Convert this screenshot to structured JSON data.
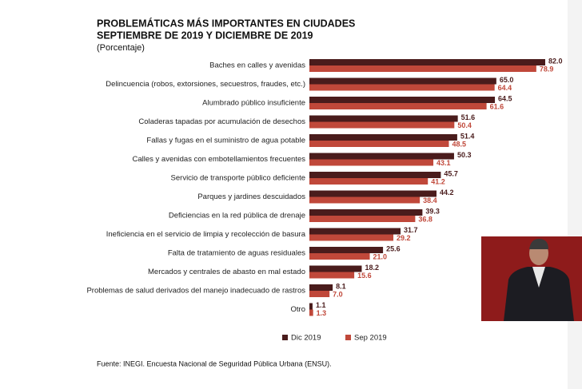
{
  "chart_data": {
    "type": "hbar",
    "title": "PROBLEMÁTICAS MÁS IMPORTANTES EN CIUDADES",
    "subtitle": "SEPTIEMBRE DE 2019 Y DICIEMBRE DE 2019",
    "unit_note": "(Porcentaje)",
    "source": "Fuente: INEGI. Encuesta Nacional de Seguridad Pública Urbana (ENSU).",
    "categories": [
      "Baches en calles y avenidas",
      "Delincuencia (robos, extorsiones, secuestros, fraudes, etc.)",
      "Alumbrado público insuficiente",
      "Coladeras tapadas por acumulación de desechos",
      "Fallas y fugas en el suministro de agua potable",
      "Calles y avenidas con embotellamientos frecuentes",
      "Servicio de transporte público deficiente",
      "Parques y jardines descuidados",
      "Deficiencias en la red pública de drenaje",
      "Ineficiencia en el servicio de limpia y recolección de basura",
      "Falta de tratamiento de aguas residuales",
      "Mercados y centrales de abasto en mal estado",
      "Problemas de salud derivados del manejo inadecuado de rastros",
      "Otro"
    ],
    "series": [
      {
        "name": "Dic 2019",
        "color": "#4a1c1c",
        "values": [
          82.0,
          65.0,
          64.5,
          51.6,
          51.4,
          50.3,
          45.7,
          44.2,
          39.3,
          31.7,
          25.6,
          18.2,
          8.1,
          1.1
        ],
        "value_labels": [
          "82.0",
          "65.0",
          "64.5",
          "51.6",
          "51.4",
          "50.3",
          "45.7",
          "44.2",
          "39.3",
          "31.7",
          "25.6",
          "18.2",
          "8.1",
          "1.1"
        ]
      },
      {
        "name": "Sep 2019",
        "color": "#c0483a",
        "values": [
          78.9,
          64.4,
          61.6,
          50.4,
          48.5,
          43.1,
          41.2,
          38.4,
          36.8,
          29.2,
          21.0,
          15.6,
          7.0,
          1.3
        ],
        "value_labels": [
          "78.9",
          "64.4",
          "61.6",
          "50.4",
          "48.5",
          "43.1",
          "41.2",
          "38.4",
          "36.8",
          "29.2",
          "21.0",
          "15.6",
          "7.0",
          "1.3"
        ]
      }
    ]
  }
}
